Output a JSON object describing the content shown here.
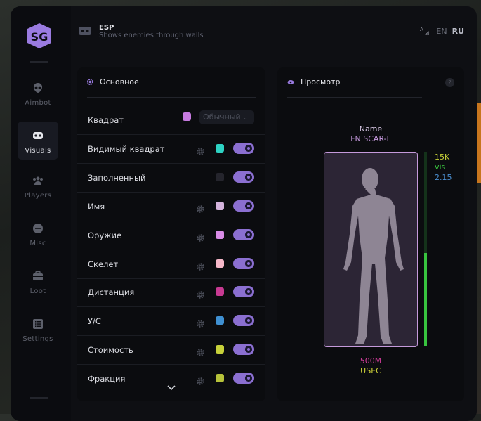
{
  "header": {
    "title": "ESP",
    "subtitle": "Shows enemies through walls",
    "lang_en": "EN",
    "lang_ru": "RU"
  },
  "sidebar": {
    "items": [
      {
        "label": "Aimbot",
        "icon": "alien-icon"
      },
      {
        "label": "Visuals",
        "icon": "vr-goggles-icon",
        "active": true
      },
      {
        "label": "Players",
        "icon": "users-icon"
      },
      {
        "label": "Misc",
        "icon": "chat-dots-icon"
      },
      {
        "label": "Loot",
        "icon": "briefcase-icon"
      },
      {
        "label": "Settings",
        "icon": "list-icon"
      }
    ]
  },
  "main": {
    "title": "Основное",
    "select_value": "Обычный",
    "rows": [
      {
        "label": "Квадрат",
        "color": "#c77be0",
        "select": true
      },
      {
        "label": "Видимый квадрат",
        "color": "#2ed3c4",
        "gear": true,
        "on": true
      },
      {
        "label": "Заполненный",
        "color": "#25252d",
        "on": true
      },
      {
        "label": "Имя",
        "color": "#d4b3dc",
        "gear": true,
        "on": true
      },
      {
        "label": "Оружие",
        "color": "#d88be6",
        "gear": true,
        "on": true
      },
      {
        "label": "Скелет",
        "color": "#f6b8c9",
        "gear": true,
        "on": true
      },
      {
        "label": "Дистанция",
        "color": "#c83a92",
        "gear": true,
        "on": true
      },
      {
        "label": "У/С",
        "color": "#3f90d2",
        "gear": true,
        "on": true
      },
      {
        "label": "Стоимость",
        "color": "#c7d13a",
        "gear": true,
        "on": true
      },
      {
        "label": "Фракция",
        "color": "#b6c23a",
        "gear": true,
        "on": true
      }
    ]
  },
  "preview": {
    "title": "Просмотр",
    "help": "?",
    "name": "Name",
    "weapon": "FN SCAR-L",
    "value": "15K",
    "visible": "vis",
    "kd": "2.15",
    "distance": "500M",
    "faction": "USEC",
    "health_fraction": 0.48
  },
  "colors": {
    "accent": "#8b6fd1",
    "name": "#d7c8e4",
    "weapon": "#c89be0",
    "value": "#c9d33a",
    "visible": "#3ac63f",
    "kd": "#4b8fd0",
    "distance": "#d23d9b",
    "faction": "#d0d43a"
  }
}
